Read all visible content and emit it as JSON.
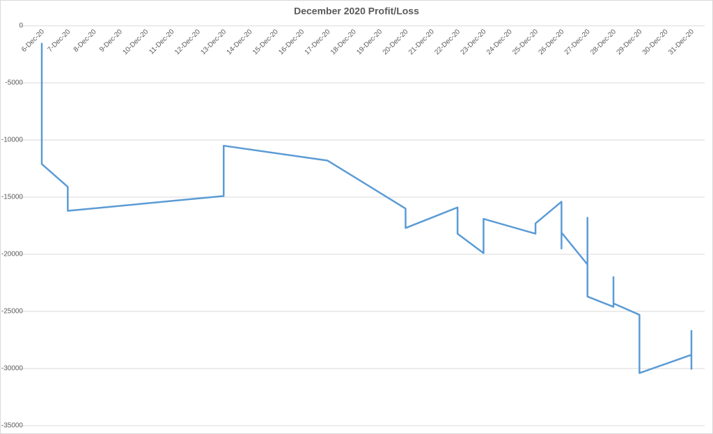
{
  "chart_data": {
    "type": "line",
    "title": "December 2020 Profit/Loss",
    "xticks": [
      "6-Dec-20",
      "7-Dec-20",
      "8-Dec-20",
      "9-Dec-20",
      "10-Dec-20",
      "11-Dec-20",
      "12-Dec-20",
      "13-Dec-20",
      "14-Dec-20",
      "15-Dec-20",
      "16-Dec-20",
      "17-Dec-20",
      "18-Dec-20",
      "19-Dec-20",
      "20-Dec-20",
      "21-Dec-20",
      "22-Dec-20",
      "23-Dec-20",
      "24-Dec-20",
      "25-Dec-20",
      "26-Dec-20",
      "27-Dec-20",
      "28-Dec-20",
      "29-Dec-20",
      "30-Dec-20",
      "31-Dec-20"
    ],
    "x": [
      "6-Dec-20",
      "6-Dec-20",
      "7-Dec-20",
      "7-Dec-20",
      "13-Dec-20",
      "13-Dec-20",
      "17-Dec-20",
      "20-Dec-20",
      "20-Dec-20",
      "22-Dec-20",
      "22-Dec-20",
      "23-Dec-20",
      "23-Dec-20",
      "25-Dec-20",
      "25-Dec-20",
      "26-Dec-20",
      "26-Dec-20",
      "26-Dec-20",
      "27-Dec-20",
      "27-Dec-20",
      "27-Dec-20",
      "28-Dec-20",
      "28-Dec-20",
      "28-Dec-20",
      "29-Dec-20",
      "29-Dec-20",
      "31-Dec-20",
      "31-Dec-20",
      "31-Dec-20"
    ],
    "values": [
      -1500,
      -12100,
      -14100,
      -16200,
      -14900,
      -10500,
      -11800,
      -16000,
      -17700,
      -15900,
      -18200,
      -19900,
      -16900,
      -18200,
      -17300,
      -15400,
      -19500,
      -18100,
      -20900,
      -16800,
      -23700,
      -24600,
      -22000,
      -24300,
      -25300,
      -30400,
      -28800,
      -26700,
      -30100
    ],
    "color": "#5b9bd5",
    "ylim": [
      0,
      -35000
    ],
    "yticks": [
      0,
      -5000,
      -10000,
      -15000,
      -20000,
      -25000,
      -30000,
      -35000
    ],
    "grid": true
  }
}
